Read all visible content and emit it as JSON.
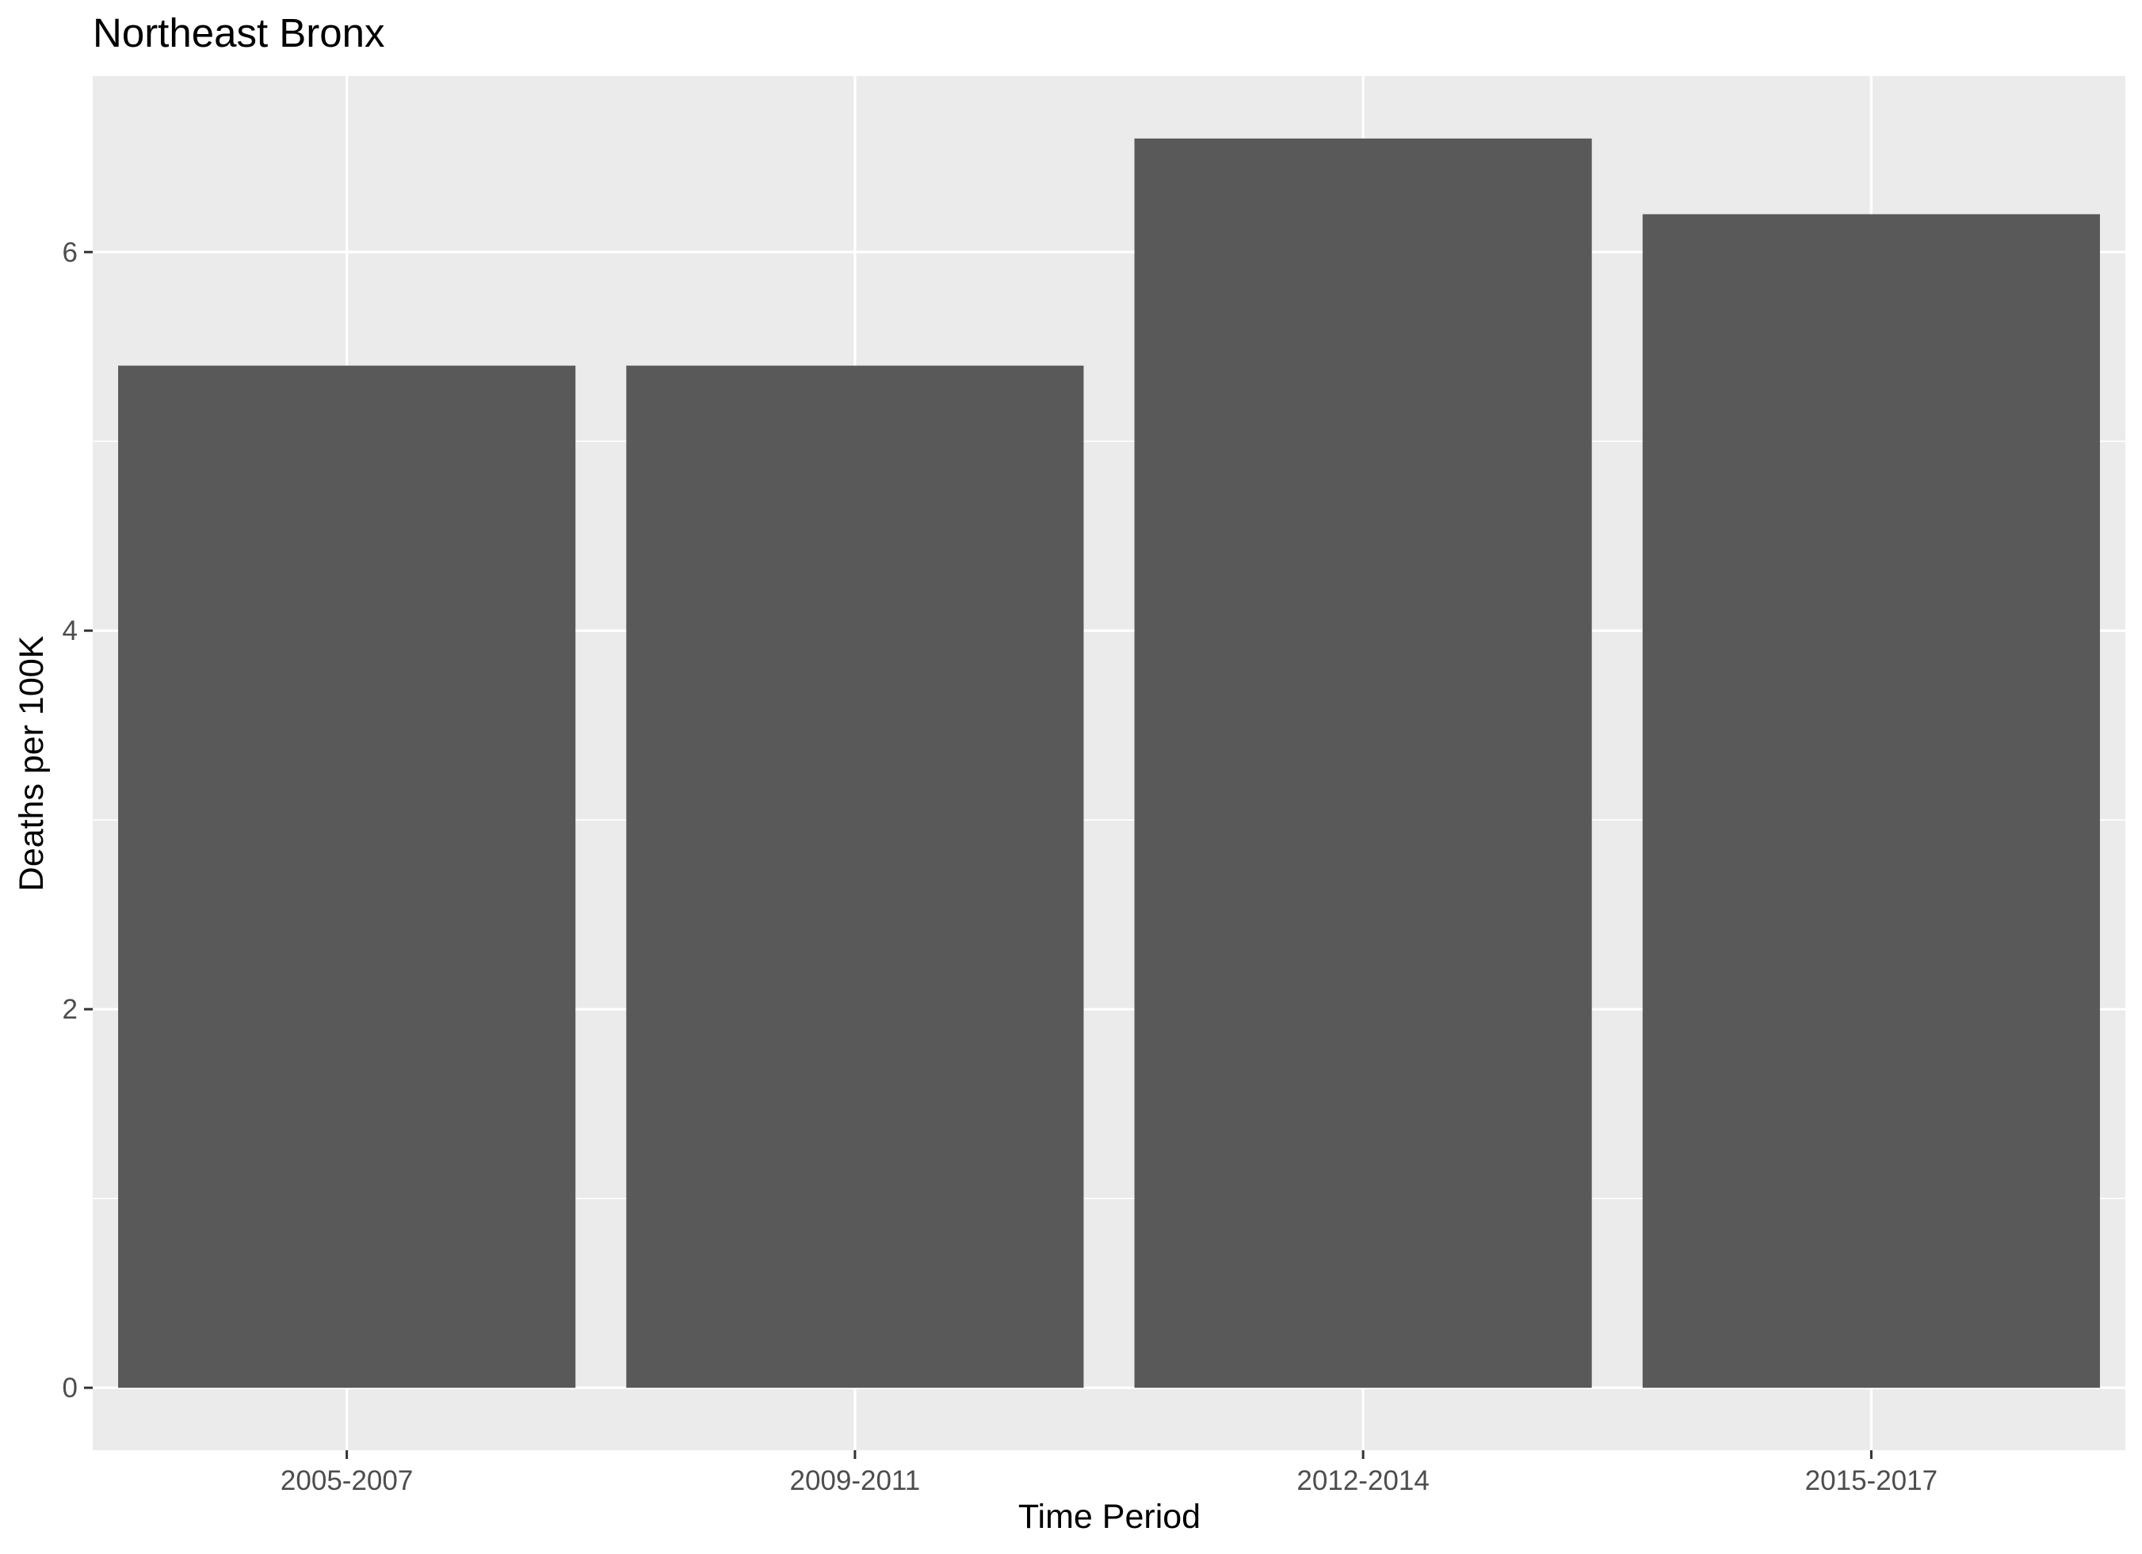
{
  "chart_data": {
    "type": "bar",
    "title": "Northeast Bronx",
    "xlabel": "Time Period",
    "ylabel": "Deaths per 100K",
    "categories": [
      "2005-2007",
      "2009-2011",
      "2012-2014",
      "2015-2017"
    ],
    "values": [
      5.4,
      5.4,
      6.6,
      6.2
    ],
    "ylim": [
      -0.33,
      6.93
    ],
    "yticks": [
      0,
      2,
      4,
      6
    ],
    "ytick_labels": [
      "0",
      "2",
      "4",
      "6"
    ],
    "grid": true,
    "legend": "none",
    "colors": {
      "bar": "#595959",
      "panel": "#ebebeb",
      "grid": "#ffffff",
      "tick_label": "#4d4d4d",
      "tick": "#333333"
    }
  }
}
